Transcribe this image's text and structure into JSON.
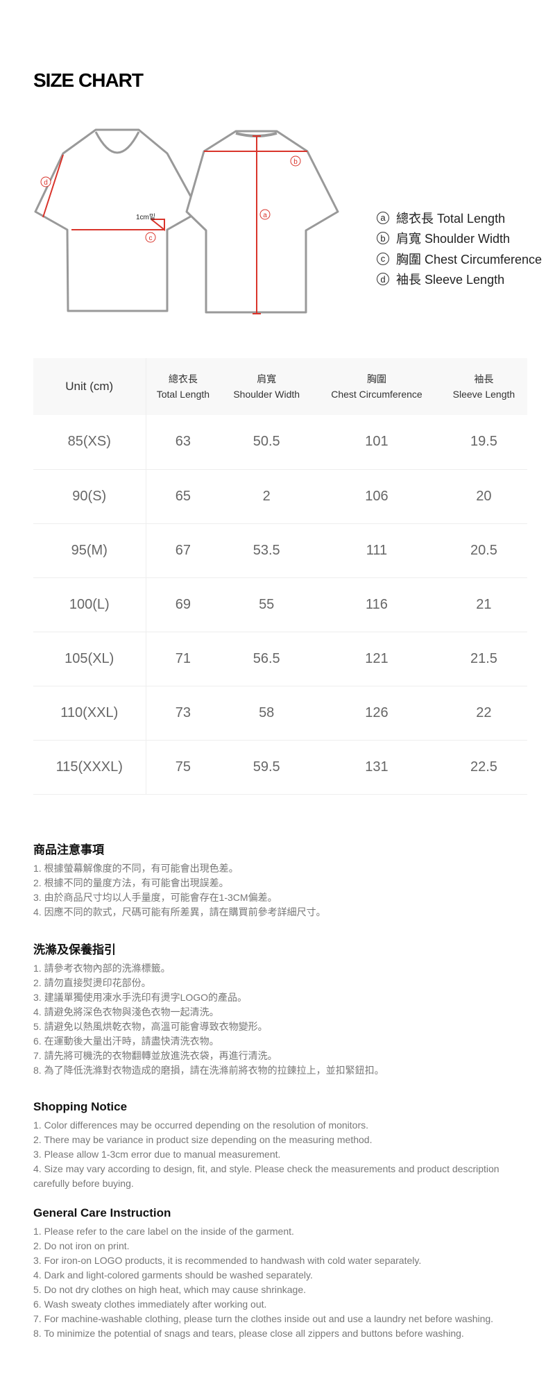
{
  "title": "SIZE CHART",
  "diagram": {
    "labels": {
      "a": "a",
      "b": "b",
      "c": "c",
      "d": "d",
      "offset": "1cm밑"
    },
    "accent": "#d9342b"
  },
  "legend": [
    {
      "mark": "a",
      "text": "總衣長 Total Length"
    },
    {
      "mark": "b",
      "text": "肩寬 Shoulder Width"
    },
    {
      "mark": "c",
      "text": "胸圍 Chest Circumference"
    },
    {
      "mark": "d",
      "text": "袖長 Sleeve Length"
    }
  ],
  "table": {
    "unit": "Unit (cm)",
    "headers": [
      {
        "zh": "總衣長",
        "en": "Total Length"
      },
      {
        "zh": "肩寬",
        "en": "Shoulder Width"
      },
      {
        "zh": "胸圍",
        "en": "Chest Circumference"
      },
      {
        "zh": "袖長",
        "en": "Sleeve Length"
      }
    ],
    "rows": [
      [
        "85(XS)",
        "63",
        "50.5",
        "101",
        "19.5"
      ],
      [
        "90(S)",
        "65",
        "2",
        "106",
        "20"
      ],
      [
        "95(M)",
        "67",
        "53.5",
        "111",
        "20.5"
      ],
      [
        "100(L)",
        "69",
        "55",
        "116",
        "21"
      ],
      [
        "105(XL)",
        "71",
        "56.5",
        "121",
        "21.5"
      ],
      [
        "110(XXL)",
        "73",
        "58",
        "126",
        "22"
      ],
      [
        "115(XXXL)",
        "75",
        "59.5",
        "131",
        "22.5"
      ]
    ]
  },
  "sections": [
    {
      "title": "商品注意事項",
      "items": [
        "1. 根據螢幕解像度的不同，有可能會出現色差。",
        "2. 根據不同的量度方法，有可能會出現誤差。",
        "3. 由於商品尺寸均以人手量度，可能會存在1-3CM偏差。",
        "4. 因應不同的款式，尺碼可能有所差異，請在購買前參考詳細尺寸。"
      ]
    },
    {
      "title": "洗滌及保養指引",
      "items": [
        "1. 請參考衣物內部的洗滌標籤。",
        "2. 請勿直接熨燙印花部份。",
        "3. 建議單獨使用凍水手洗印有燙字LOGO的產品。",
        "4. 請避免將深色衣物與淺色衣物一起清洗。",
        "5. 請避免以熱風烘乾衣物，高溫可能會導致衣物變形。",
        "6. 在運動後大量出汗時，請盡快清洗衣物。",
        "7. 請先將可機洗的衣物翻轉並放進洗衣袋，再進行清洗。",
        "8. 為了降低洗滌對衣物造成的磨損，請在洗滌前將衣物的拉鍊拉上，並扣緊鈕扣。"
      ]
    },
    {
      "title": "Shopping Notice",
      "items": [
        "1. Color differences may be occurred depending on the resolution of monitors.",
        "2. There may be variance in product size depending on the measuring method.",
        "3. Please allow 1-3cm error due to manual measurement.",
        "4. Size may vary according to design, fit, and style. Please check the measurements and product description carefully before buying."
      ]
    },
    {
      "title": "General Care Instruction",
      "items": [
        "1. Please refer to the care label on the inside of the garment.",
        "2. Do not iron on print.",
        "3. For iron-on LOGO products, it is recommended to handwash with cold water separately.",
        "4. Dark and light-colored garments should be washed separately.",
        "5. Do not dry clothes on high heat, which may cause shrinkage.",
        "6. Wash sweaty clothes immediately after working out.",
        "7. For machine-washable clothing, please turn the clothes inside out and use a laundry net before washing.",
        "8. To minimize the potential of snags and tears, please close all zippers and buttons before washing."
      ]
    }
  ]
}
